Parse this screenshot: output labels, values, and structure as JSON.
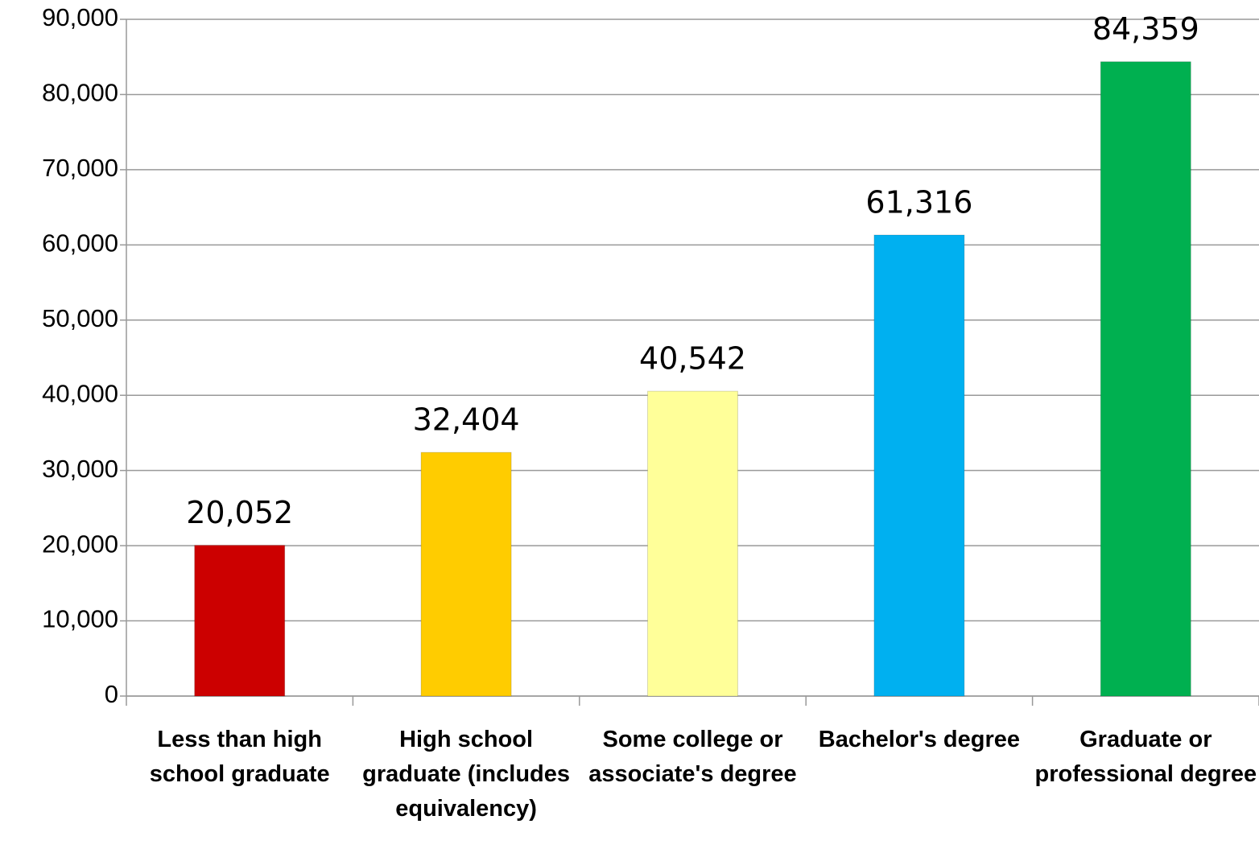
{
  "chart_data": {
    "type": "bar",
    "categories": [
      "Less than high school graduate",
      "High school graduate (includes equivalency)",
      "Some college or associate's degree",
      "Bachelor's degree",
      "Graduate or professional degree"
    ],
    "values": [
      20052,
      32404,
      40542,
      61316,
      84359
    ],
    "value_labels": [
      "20,052",
      "32,404",
      "40,542",
      "61,316",
      "84,359"
    ],
    "colors": [
      "#cc0000",
      "#ffcc00",
      "#ffff99",
      "#00b0f0",
      "#00b050"
    ],
    "ylim": [
      0,
      90000
    ],
    "yticks": [
      0,
      {
        "value": 10000,
        "label": "10,000"
      },
      {
        "value": 20000,
        "label": "20,000"
      },
      {
        "value": 30000,
        "label": "30,000"
      },
      {
        "value": 40000,
        "label": "40,000"
      },
      {
        "value": 50000,
        "label": "50,000"
      },
      {
        "value": 60000,
        "label": "60,000"
      },
      {
        "value": 70000,
        "label": "70,000"
      },
      {
        "value": 80000,
        "label": "80,000"
      },
      {
        "value": 90000,
        "label": "90,000"
      }
    ],
    "grid": true
  }
}
